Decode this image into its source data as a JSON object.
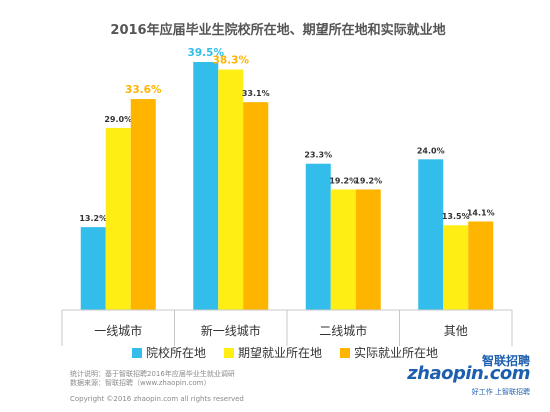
{
  "chart_data": {
    "type": "bar",
    "title": "2016年应届毕业生院校所在地、期望所在地和实际就业地",
    "categories": [
      "一线城市",
      "新一线城市",
      "二线城市",
      "其他"
    ],
    "series": [
      {
        "name": "院校所在地",
        "color": "#33bdeb",
        "values": [
          13.2,
          39.5,
          23.3,
          24.0
        ],
        "labels": [
          "13.2%",
          "39.5%",
          "23.3%",
          "24.0%"
        ]
      },
      {
        "name": "期望就业所在地",
        "color": "#ffee14",
        "values": [
          29.0,
          38.3,
          19.2,
          13.5
        ],
        "labels": [
          "29.0%",
          "38.3%",
          "19.2%",
          "13.5%"
        ]
      },
      {
        "name": "实际就业所在地",
        "color": "#ffb400",
        "values": [
          33.6,
          33.1,
          19.2,
          14.1
        ],
        "labels": [
          "33.6%",
          "33.1%",
          "19.2%",
          "14.1%"
        ]
      }
    ],
    "highlight_label_colors": {
      "39.5%": "#33bdeb",
      "38.3%": "#ffb400",
      "33.6%": "#ffb400"
    },
    "ylim": [
      0,
      40
    ],
    "grid": false,
    "legend_position": "bottom"
  },
  "footer": {
    "note_line1": "统计说明：基于智联招聘2016年应届毕业生就业调研",
    "note_line2": "数据来源：智联招聘（www.zhaopin.com）",
    "copyright": "Copyright ©2016 zhaopin.com all rights reserved"
  },
  "logo": {
    "cn": "智联招聘",
    "en": "zhaopin.com",
    "tagline": "好工作  上智联招聘"
  }
}
